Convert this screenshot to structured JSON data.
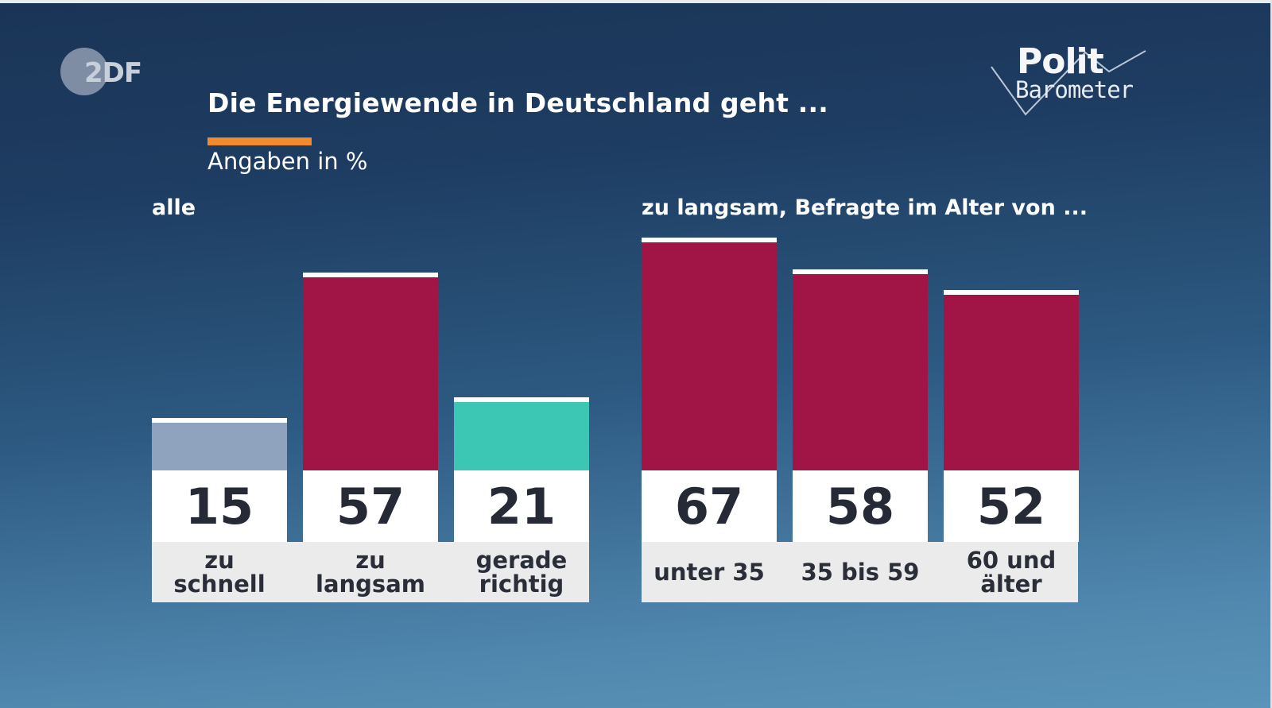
{
  "broadcaster": {
    "logo_text": "2DF",
    "logo_name": "ZDF"
  },
  "program": {
    "line1": "Polit",
    "line2": "Barometer"
  },
  "header": {
    "title": "Die Energiewende in Deutschland geht ...",
    "subtitle": "Angaben in %",
    "accent_color": "#f08a2c"
  },
  "chart_data": [
    {
      "type": "bar",
      "title": "alle",
      "categories": [
        "zu\nschnell",
        "zu\nlangsam",
        "gerade\nrichtig"
      ],
      "values": [
        15,
        57,
        21
      ],
      "colors": [
        "#8fa3be",
        "#a01546",
        "#3cc6b4"
      ],
      "unit": "%",
      "ylim": [
        0,
        70
      ],
      "grid": false
    },
    {
      "type": "bar",
      "title": "zu langsam, Befragte im Alter von ...",
      "categories": [
        "unter 35",
        "35 bis 59",
        "60 und\nälter"
      ],
      "values": [
        67,
        58,
        52
      ],
      "colors": [
        "#a01546",
        "#a01546",
        "#a01546"
      ],
      "unit": "%",
      "ylim": [
        0,
        70
      ],
      "grid": false
    }
  ]
}
